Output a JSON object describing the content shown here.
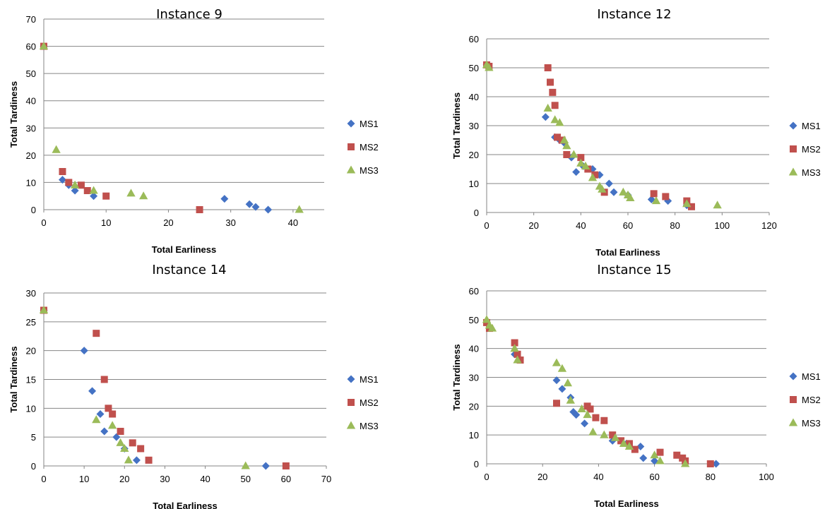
{
  "styles": {
    "MS1": {
      "color": "#4472C4",
      "shape": "diamond"
    },
    "MS2": {
      "color": "#C0504D",
      "shape": "square"
    },
    "MS3": {
      "color": "#9BBB59",
      "shape": "triangle"
    },
    "grid_color": "#868686",
    "axis_color": "#868686"
  },
  "chart_data": [
    {
      "type": "scatter",
      "title": "Instance  9",
      "xlabel": "Total Earliness",
      "ylabel": "Total Tardiness",
      "xlim": [
        0,
        45
      ],
      "xticks": [
        0,
        10,
        20,
        30,
        40
      ],
      "ylim": [
        0,
        70
      ],
      "yticks": [
        0,
        10,
        20,
        30,
        40,
        50,
        60,
        70
      ],
      "grid": true,
      "legend": "right",
      "series": [
        {
          "name": "MS1",
          "points": [
            [
              0,
              60
            ],
            [
              3,
              11
            ],
            [
              4,
              9
            ],
            [
              5,
              7
            ],
            [
              8,
              5
            ],
            [
              29,
              4
            ],
            [
              33,
              2
            ],
            [
              34,
              1
            ],
            [
              36,
              0
            ]
          ]
        },
        {
          "name": "MS2",
          "points": [
            [
              0,
              60
            ],
            [
              3,
              14
            ],
            [
              4,
              10
            ],
            [
              6,
              9
            ],
            [
              7,
              7
            ],
            [
              10,
              5
            ],
            [
              25,
              0
            ]
          ]
        },
        {
          "name": "MS3",
          "points": [
            [
              0,
              60
            ],
            [
              2,
              22
            ],
            [
              5,
              9
            ],
            [
              8,
              7
            ],
            [
              14,
              6
            ],
            [
              16,
              5
            ],
            [
              41,
              0
            ]
          ]
        }
      ]
    },
    {
      "type": "scatter",
      "title": "Instance  12",
      "xlabel": "Total Earliness",
      "ylabel": "Total Tardiness",
      "xlim": [
        0,
        120
      ],
      "xticks": [
        0,
        20,
        40,
        60,
        80,
        100,
        120
      ],
      "ylim": [
        0,
        60
      ],
      "yticks": [
        0,
        10,
        20,
        30,
        40,
        50,
        60
      ],
      "grid": true,
      "legend": "right",
      "series": [
        {
          "name": "MS1",
          "points": [
            [
              0,
              51
            ],
            [
              25,
              33
            ],
            [
              29,
              26
            ],
            [
              31,
              25
            ],
            [
              33,
              24
            ],
            [
              36,
              19
            ],
            [
              38,
              14
            ],
            [
              41,
              16
            ],
            [
              45,
              15
            ],
            [
              48,
              13
            ],
            [
              52,
              10
            ],
            [
              54,
              7
            ],
            [
              60,
              6
            ],
            [
              70,
              4.5
            ],
            [
              77,
              4
            ],
            [
              85,
              2.5
            ]
          ]
        },
        {
          "name": "MS2",
          "points": [
            [
              0,
              51
            ],
            [
              1,
              50.5
            ],
            [
              26,
              50
            ],
            [
              27,
              45
            ],
            [
              28,
              41.5
            ],
            [
              29,
              37
            ],
            [
              30,
              26
            ],
            [
              32,
              25
            ],
            [
              34,
              20
            ],
            [
              40,
              19
            ],
            [
              43,
              15
            ],
            [
              46,
              13
            ],
            [
              50,
              7
            ],
            [
              71,
              6.5
            ],
            [
              76,
              5.5
            ],
            [
              85,
              4
            ],
            [
              87,
              2
            ]
          ]
        },
        {
          "name": "MS3",
          "points": [
            [
              0,
              51
            ],
            [
              1,
              50
            ],
            [
              26,
              36
            ],
            [
              29,
              32
            ],
            [
              31,
              31
            ],
            [
              33,
              25
            ],
            [
              34,
              23
            ],
            [
              37,
              20
            ],
            [
              40,
              17
            ],
            [
              42,
              16
            ],
            [
              45,
              12
            ],
            [
              48,
              9
            ],
            [
              49,
              8
            ],
            [
              58,
              7
            ],
            [
              60,
              6
            ],
            [
              61,
              5
            ],
            [
              72,
              4
            ],
            [
              85,
              3
            ],
            [
              98,
              2.5
            ]
          ]
        }
      ]
    },
    {
      "type": "scatter",
      "title": "Instance  14",
      "xlabel": "Total Earliness",
      "ylabel": "Total Tardiness",
      "xlim": [
        0,
        70
      ],
      "xticks": [
        0,
        10,
        20,
        30,
        40,
        50,
        60,
        70
      ],
      "ylim": [
        0,
        30
      ],
      "yticks": [
        0,
        5,
        10,
        15,
        20,
        25,
        30
      ],
      "grid": true,
      "legend": "right",
      "series": [
        {
          "name": "MS1",
          "points": [
            [
              0,
              27
            ],
            [
              10,
              20
            ],
            [
              12,
              13
            ],
            [
              14,
              9
            ],
            [
              15,
              6
            ],
            [
              18,
              5
            ],
            [
              20,
              3
            ],
            [
              23,
              1
            ],
            [
              55,
              0
            ]
          ]
        },
        {
          "name": "MS2",
          "points": [
            [
              0,
              27
            ],
            [
              13,
              23
            ],
            [
              15,
              15
            ],
            [
              16,
              10
            ],
            [
              17,
              9
            ],
            [
              19,
              6
            ],
            [
              22,
              4
            ],
            [
              24,
              3
            ],
            [
              26,
              1
            ],
            [
              60,
              0
            ]
          ]
        },
        {
          "name": "MS3",
          "points": [
            [
              0,
              27
            ],
            [
              13,
              8
            ],
            [
              17,
              7
            ],
            [
              19,
              4
            ],
            [
              20,
              3
            ],
            [
              21,
              1
            ],
            [
              50,
              0
            ]
          ]
        }
      ]
    },
    {
      "type": "scatter",
      "title": "Instance  15",
      "xlabel": "Total Earliness",
      "ylabel": "Total Tardiness",
      "xlim": [
        0,
        100
      ],
      "xticks": [
        0,
        20,
        40,
        60,
        80,
        100
      ],
      "ylim": [
        0,
        60
      ],
      "yticks": [
        0,
        10,
        20,
        30,
        40,
        50,
        60
      ],
      "grid": true,
      "legend": "right",
      "series": [
        {
          "name": "MS1",
          "points": [
            [
              0,
              49
            ],
            [
              10,
              38
            ],
            [
              25,
              29
            ],
            [
              27,
              26
            ],
            [
              30,
              23
            ],
            [
              31,
              18
            ],
            [
              32,
              17
            ],
            [
              35,
              14
            ],
            [
              45,
              8
            ],
            [
              50,
              7
            ],
            [
              55,
              6
            ],
            [
              56,
              2
            ],
            [
              60,
              1
            ],
            [
              82,
              0
            ]
          ]
        },
        {
          "name": "MS2",
          "points": [
            [
              0,
              49
            ],
            [
              1,
              47
            ],
            [
              10,
              42
            ],
            [
              11,
              38
            ],
            [
              12,
              36
            ],
            [
              25,
              21
            ],
            [
              36,
              20
            ],
            [
              37,
              19
            ],
            [
              39,
              16
            ],
            [
              42,
              15
            ],
            [
              45,
              10
            ],
            [
              48,
              8
            ],
            [
              51,
              7
            ],
            [
              53,
              5
            ],
            [
              62,
              4
            ],
            [
              68,
              3
            ],
            [
              70,
              2
            ],
            [
              71,
              1
            ],
            [
              80,
              0
            ]
          ]
        },
        {
          "name": "MS3",
          "points": [
            [
              0,
              50
            ],
            [
              1,
              48
            ],
            [
              2,
              47
            ],
            [
              10,
              40
            ],
            [
              11,
              36
            ],
            [
              25,
              35
            ],
            [
              27,
              33
            ],
            [
              29,
              28
            ],
            [
              30,
              22
            ],
            [
              34,
              19
            ],
            [
              36,
              17
            ],
            [
              38,
              11
            ],
            [
              42,
              10
            ],
            [
              46,
              9
            ],
            [
              49,
              7
            ],
            [
              51,
              6
            ],
            [
              60,
              3
            ],
            [
              62,
              1
            ],
            [
              71,
              0
            ]
          ]
        }
      ]
    }
  ]
}
